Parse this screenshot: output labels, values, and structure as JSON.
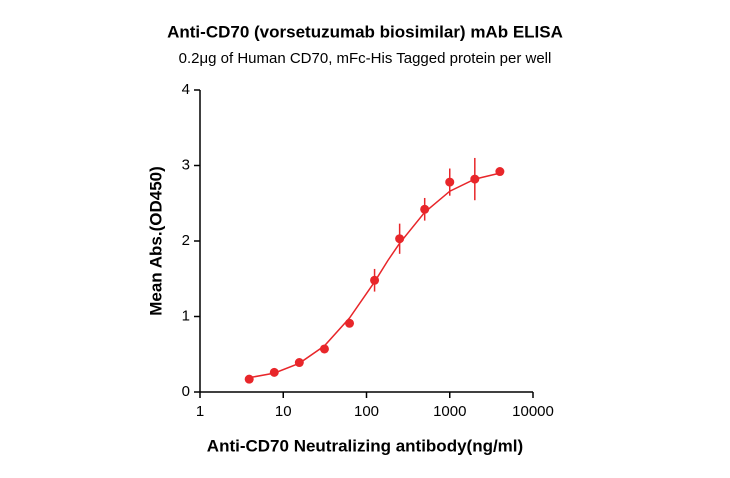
{
  "chart_data": {
    "type": "scatter",
    "title": "Anti-CD70 (vorsetuzumab biosimilar) mAb ELISA",
    "subtitle": "0.2μg of Human CD70, mFc-His Tagged protein per well",
    "x_label": "Anti-CD70 Neutralizing antibody(ng/ml)",
    "y_label": "Mean Abs.(OD450)",
    "log_x": true,
    "xlim": [
      1,
      10000
    ],
    "xticks": [
      1,
      10,
      100,
      1000,
      10000
    ],
    "ylim": [
      0,
      4
    ],
    "yticks": [
      0,
      1,
      2,
      3,
      4
    ],
    "color": "#e8262a",
    "x": [
      3.9,
      7.8,
      15.6,
      31.25,
      62.5,
      125,
      250,
      500,
      1000,
      2000,
      4000
    ],
    "values": [
      0.17,
      0.26,
      0.39,
      0.57,
      0.91,
      1.48,
      2.03,
      2.42,
      2.78,
      2.82,
      2.92
    ],
    "errors": [
      0.02,
      0.02,
      0.02,
      0.02,
      0.03,
      0.15,
      0.2,
      0.15,
      0.18,
      0.28,
      0.04
    ],
    "fit": {
      "x": [
        3.5,
        7.8,
        15.6,
        31.25,
        62.5,
        125,
        180,
        250,
        500,
        1000,
        2000,
        4000
      ],
      "y": [
        0.18,
        0.25,
        0.38,
        0.61,
        0.98,
        1.46,
        1.74,
        1.97,
        2.38,
        2.66,
        2.82,
        2.9
      ]
    }
  }
}
